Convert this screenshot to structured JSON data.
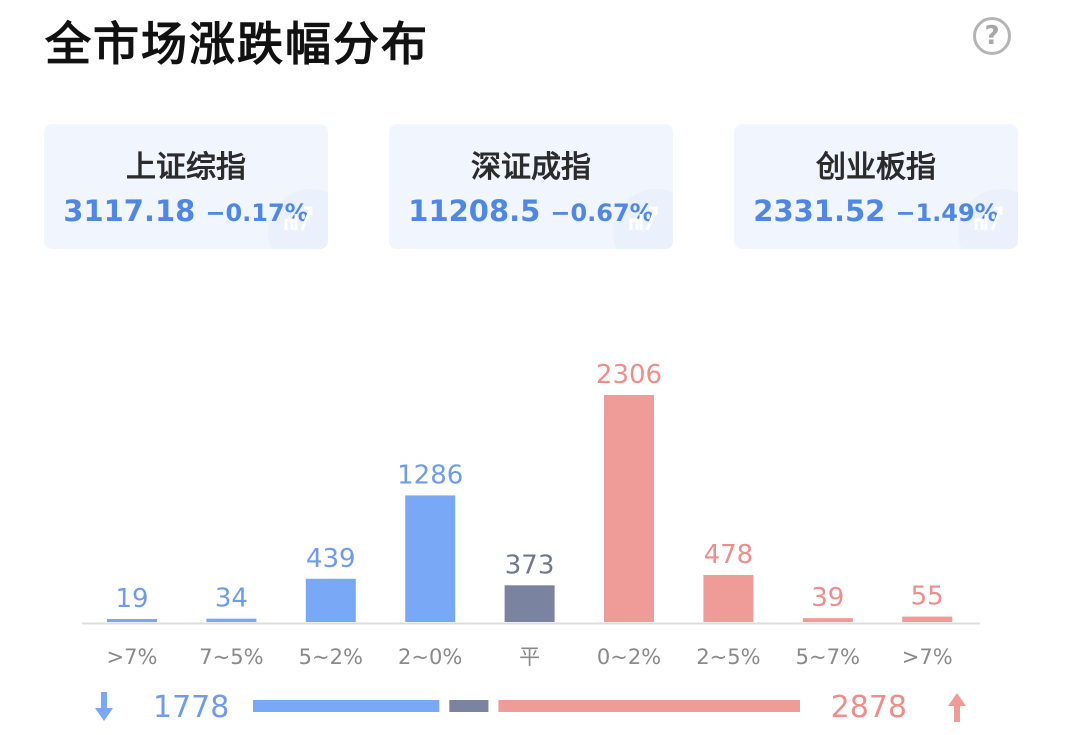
{
  "header": {
    "title": "全市场涨跌幅分布",
    "help_icon": "?"
  },
  "indices": [
    {
      "name": "上证综指",
      "value": "3117.18",
      "change": "−0.17%"
    },
    {
      "name": "深证成指",
      "value": "11208.5",
      "change": "−0.67%"
    },
    {
      "name": "创业板指",
      "value": "2331.52",
      "change": "−1.49%"
    }
  ],
  "colors": {
    "down": "#79a8f7",
    "flat": "#7a84a0",
    "up": "#ef9b98",
    "down_text": "#6f9bea",
    "flat_text": "#6f7791",
    "up_text": "#ee8e8a",
    "axis": "#dddddd"
  },
  "chart_data": {
    "type": "bar",
    "categories": [
      ">7%",
      "7~5%",
      "5~2%",
      "2~0%",
      "平",
      "0~2%",
      "2~5%",
      "5~7%",
      ">7%"
    ],
    "values": [
      19,
      34,
      439,
      1286,
      373,
      2306,
      478,
      39,
      55
    ],
    "groups": [
      "down",
      "down",
      "down",
      "down",
      "flat",
      "up",
      "up",
      "up",
      "up"
    ],
    "ylim": [
      0,
      2306
    ]
  },
  "summary": {
    "down_total": "1778",
    "up_total": "2878",
    "flat_total": 373,
    "down_icon": "arrow-down-icon",
    "up_icon": "arrow-up-icon"
  }
}
